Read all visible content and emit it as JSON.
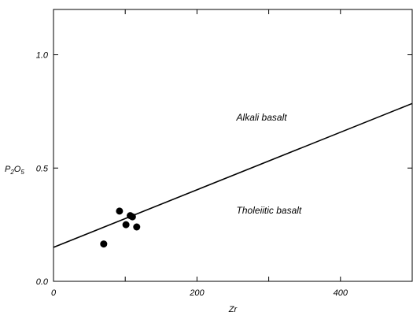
{
  "chart_data": {
    "type": "scatter",
    "x": [
      70,
      92,
      101,
      107,
      110,
      116
    ],
    "y": [
      0.165,
      0.31,
      0.25,
      0.29,
      0.285,
      0.24
    ],
    "xlabel": "Zr",
    "ylabel": {
      "base": "P",
      "sub1": "2",
      "mid": "O",
      "sub2": "5"
    },
    "xlim": [
      0,
      500
    ],
    "ylim": [
      0,
      1.2
    ],
    "xticks": [
      0,
      200,
      400
    ],
    "xtick_labels": [
      "0",
      "200",
      "400"
    ],
    "xticks_minor": [
      100,
      300,
      500
    ],
    "yticks": [
      0.0,
      0.5,
      1.0
    ],
    "ytick_labels": [
      "0.0",
      "0.5",
      "1.0"
    ],
    "grid": false,
    "line": {
      "x": [
        0,
        500
      ],
      "y": [
        0.15,
        0.785
      ]
    },
    "annotations": [
      {
        "text": "Alkali basalt",
        "x": 255,
        "y": 0.71
      },
      {
        "text": "Tholeiitic basalt",
        "x": 255,
        "y": 0.3
      }
    ],
    "colors": {
      "marker": "#000000",
      "line": "#000000",
      "axes": "#000000"
    }
  }
}
